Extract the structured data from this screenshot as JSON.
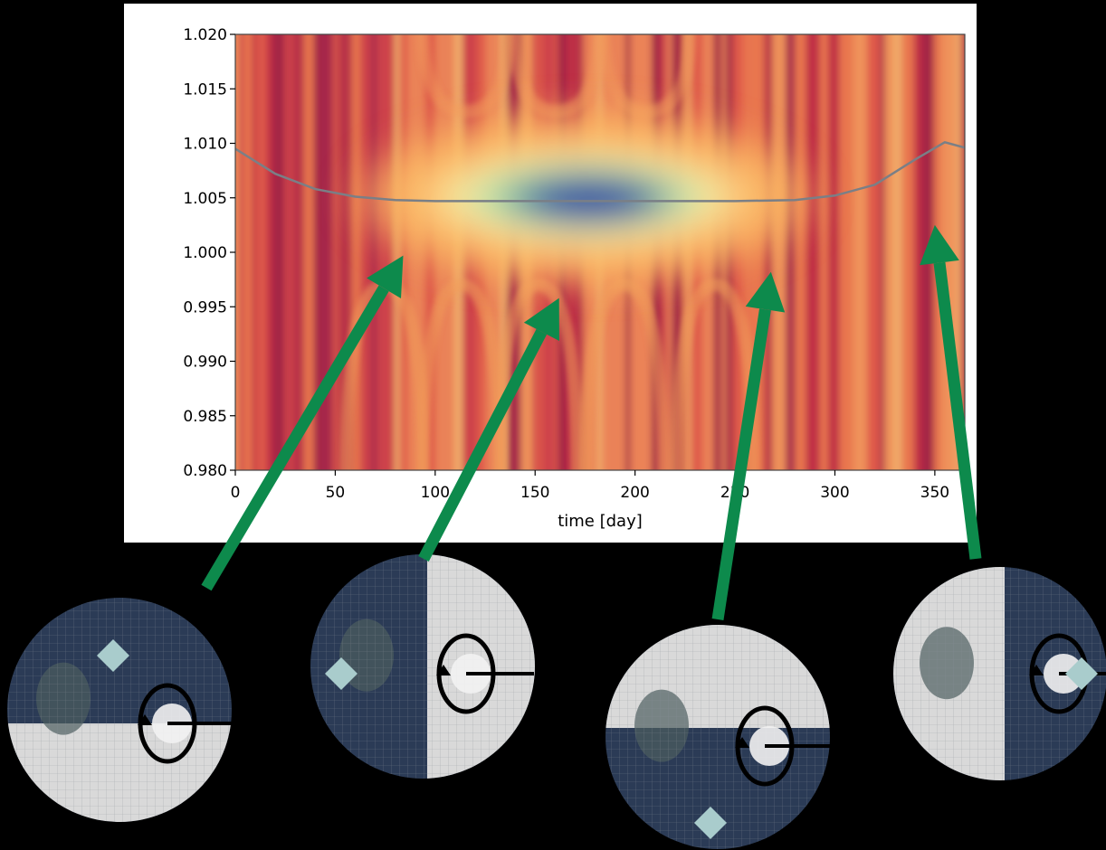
{
  "colors": {
    "background": "#000000",
    "panel": "#ffffff",
    "arrow": "#0d8a4c",
    "trend_line": "#7a7f86",
    "ocean": "#2b3b56",
    "ice": "#d9d9d9",
    "marker": "#a9cccc",
    "spin_ring": "#000000"
  },
  "chart_data": {
    "type": "heatmap",
    "title": "",
    "xlabel": "time [day]",
    "ylabel": "",
    "xlim": [
      0,
      365
    ],
    "ylim": [
      0.98,
      1.02
    ],
    "grid": false,
    "colormap": "Spectral",
    "x_ticks": [
      0,
      50,
      100,
      150,
      200,
      250,
      300,
      350
    ],
    "x_tick_labels": [
      "0",
      "50",
      "100",
      "150",
      "200",
      "250",
      "300",
      "350"
    ],
    "y_ticks": [
      1.02,
      1.015,
      1.01,
      1.005,
      1.0,
      0.995,
      0.99,
      0.985,
      0.98
    ],
    "y_tick_labels": [
      "1.020",
      "1.015",
      "1.010",
      "1.005",
      "1.000",
      "0.995",
      "0.990",
      "0.985",
      "0.980"
    ],
    "peak": {
      "x": 175,
      "y": 1.005
    },
    "trend_line": {
      "x": [
        0,
        20,
        40,
        60,
        80,
        100,
        150,
        200,
        250,
        280,
        300,
        320,
        340,
        355,
        365
      ],
      "y": [
        1.0095,
        1.0072,
        1.0058,
        1.0051,
        1.0048,
        1.0047,
        1.0047,
        1.0047,
        1.0047,
        1.0048,
        1.0052,
        1.0062,
        1.0085,
        1.0101,
        1.0096
      ]
    },
    "arrow_targets": [
      {
        "x": 84,
        "y": 0.9997
      },
      {
        "x": 162,
        "y": 0.9958
      },
      {
        "x": 268,
        "y": 0.9982
      },
      {
        "x": 350,
        "y": 1.0025
      }
    ]
  },
  "globes": [
    {
      "name": "globe-1",
      "ice_side": "bottom"
    },
    {
      "name": "globe-2",
      "ice_side": "right"
    },
    {
      "name": "globe-3",
      "ice_side": "top"
    },
    {
      "name": "globe-4",
      "ice_side": "left"
    }
  ]
}
